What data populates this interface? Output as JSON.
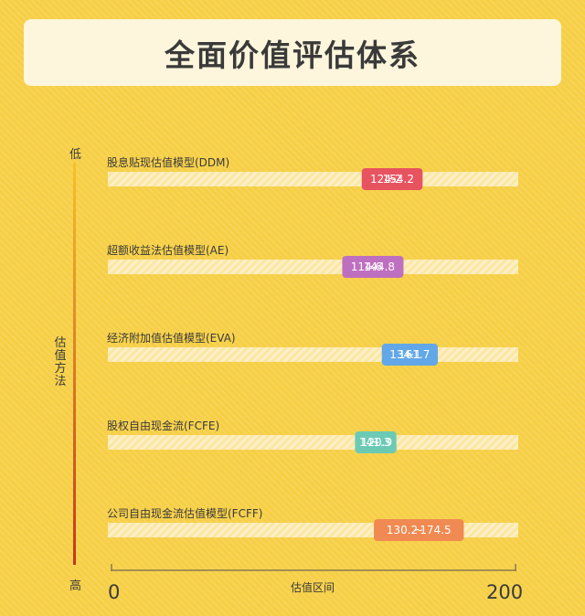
{
  "title": "全面价值评估体系",
  "chart_data": {
    "type": "range-bar",
    "xlabel": "估值区间",
    "ylabel": "估值方法",
    "xlim": [
      0,
      200
    ],
    "tick_labels": [
      "0",
      "200"
    ],
    "y_low": "低",
    "y_high": "高",
    "categories": [
      "股息贴现估值模型(DDM)",
      "超额收益法估值模型(AE)",
      "经济附加值估值模型(EVA)",
      "股权自由现金流(FCFE)",
      "公司自由现金流估值模型(FCFF)"
    ],
    "series": [
      {
        "low": 124.2,
        "high": 154.2,
        "low_label": "124.2",
        "high_label": "154.2",
        "sep": "~",
        "color": "#e85360"
      },
      {
        "low": 114.6,
        "high": 144.8,
        "low_label": "114.6",
        "high_label": "144.8",
        "sep": "~",
        "color": "#bf6fc0"
      },
      {
        "low": 134.1,
        "high": 161.7,
        "low_label": "134.1",
        "high_label": "161.7",
        "sep": "~",
        "color": "#62a7e8"
      },
      {
        "low": 120.9,
        "high": 141.3,
        "low_label": "120.9",
        "high_label": "141.3",
        "sep": "~",
        "color": "#6ccab4"
      },
      {
        "low": 130.2,
        "high": 174.5,
        "low_label": "130.2",
        "high_label": "174.5",
        "sep": "~",
        "color": "#f08a52"
      }
    ]
  }
}
